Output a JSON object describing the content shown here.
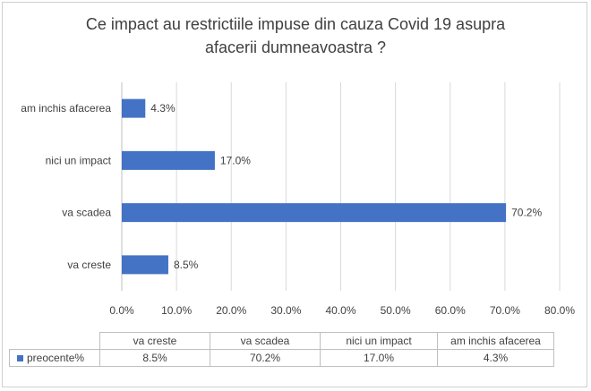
{
  "chart_data": {
    "type": "bar",
    "orientation": "horizontal",
    "title_lines": [
      "Ce impact au restrictiile impuse din cauza Covid 19  asupra",
      "afacerii dumneavoastra ?"
    ],
    "categories": [
      "va creste",
      "va scadea",
      "nici un impact",
      "am inchis afacerea"
    ],
    "series": [
      {
        "name": "preocente%",
        "values": [
          8.5,
          70.2,
          17.0,
          4.3
        ],
        "color": "#4472c4"
      }
    ],
    "data_labels": [
      "8.5%",
      "70.2%",
      "17.0%",
      "4.3%"
    ],
    "xlim": [
      0,
      80
    ],
    "xticks": [
      "0.0%",
      "10.0%",
      "20.0%",
      "30.0%",
      "40.0%",
      "50.0%",
      "60.0%",
      "70.0%",
      "80.0%"
    ],
    "grid": true,
    "data_table": true
  }
}
